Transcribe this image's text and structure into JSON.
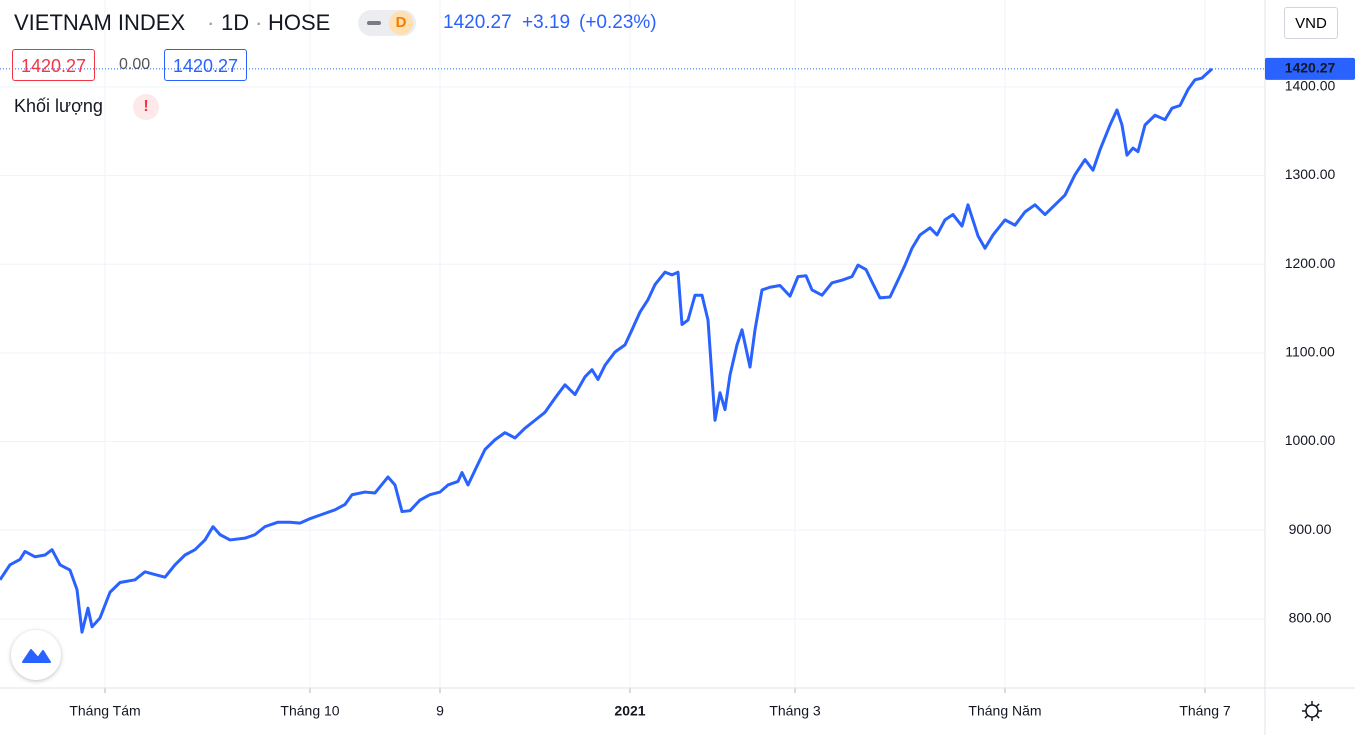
{
  "header": {
    "symbol": "VIETNAM INDEX",
    "interval": "1D",
    "exchange": "HOSE",
    "mode": "D",
    "last": "1420.27",
    "change": "+3.19",
    "change_pct": "(+0.23%)",
    "currency": "VND",
    "open_box": "1420.27",
    "diff": "0.00",
    "close_box": "1420.27",
    "volume": "Khối lượng",
    "alert": "!"
  },
  "chart_data": {
    "type": "line",
    "color": "#2962ff",
    "grid": true,
    "x": [
      0,
      2,
      4,
      5,
      7,
      9,
      10.4,
      12,
      14,
      15.4,
      16.4,
      17.6,
      18.4,
      20,
      22,
      24,
      27,
      29,
      31,
      33,
      35,
      37,
      39,
      41,
      42.6,
      44,
      46,
      49,
      51,
      53,
      55.6,
      58,
      60,
      62,
      64,
      67,
      69,
      70.4,
      73,
      75,
      77.6,
      79,
      80.4,
      82,
      84,
      86,
      88,
      89.6,
      91.6,
      92.4,
      93.6,
      95.2,
      97,
      99,
      101,
      103,
      105,
      107,
      109,
      111,
      113,
      115,
      117,
      118.4,
      119.6,
      121,
      123,
      125,
      126.4,
      128,
      129.6,
      131,
      133,
      134.4,
      135.6,
      136.4,
      137.6,
      139,
      140.4,
      141.6,
      143,
      144,
      145,
      146,
      147.4,
      148.4,
      150,
      151,
      152.4,
      154,
      156,
      158,
      159.6,
      161.2,
      162.4,
      164.4,
      166.4,
      168.4,
      170.4,
      171.6,
      173.2,
      174.4,
      176,
      178,
      179.6,
      181,
      182.4,
      184,
      186,
      187.4,
      189,
      190.6,
      192.4,
      193.6,
      195.6,
      197,
      198.6,
      201,
      203,
      205,
      207,
      209,
      211,
      213,
      215,
      217,
      218.6,
      220,
      222,
      223.4,
      224.4,
      225.4,
      226.6,
      227.6,
      229,
      231,
      233,
      234.4,
      236,
      237.6,
      239,
      240.4,
      242.4
    ],
    "values": [
      844,
      861,
      867,
      876,
      870,
      872,
      878,
      861,
      855,
      833,
      785,
      812,
      791,
      801,
      830,
      841,
      844,
      853,
      850,
      847,
      861,
      872,
      878,
      889,
      904,
      895,
      889,
      891,
      895,
      904,
      909,
      909,
      908,
      913,
      917,
      923,
      929,
      940,
      943,
      942,
      960,
      951,
      921,
      922,
      934,
      940,
      943,
      951,
      955,
      965,
      951,
      970,
      991,
      1002,
      1010,
      1004,
      1015,
      1024,
      1033,
      1049,
      1064,
      1053,
      1073,
      1081,
      1070,
      1086,
      1101,
      1109,
      1126,
      1146,
      1160,
      1177,
      1191,
      1188,
      1191,
      1132,
      1137,
      1165,
      1165,
      1137,
      1024,
      1055,
      1036,
      1075,
      1109,
      1126,
      1084,
      1126,
      1171,
      1174,
      1176,
      1164,
      1186,
      1187,
      1171,
      1165,
      1179,
      1182,
      1186,
      1199,
      1194,
      1180,
      1162,
      1163,
      1182,
      1199,
      1218,
      1233,
      1241,
      1233,
      1250,
      1256,
      1243,
      1267,
      1232,
      1218,
      1233,
      1250,
      1244,
      1259,
      1267,
      1256,
      1267,
      1278,
      1301,
      1318,
      1306,
      1329,
      1357,
      1374,
      1357,
      1323,
      1331,
      1327,
      1357,
      1368,
      1363,
      1376,
      1379,
      1397,
      1408,
      1410,
      1420.27
    ],
    "value_labels": {
      "142": "1420.27"
    },
    "xlim": [
      0,
      253
    ],
    "ylim": [
      722,
      1498
    ],
    "xticks": [
      {
        "value": 21,
        "label": "Tháng Tám"
      },
      {
        "value": 62,
        "label": "Tháng 10"
      },
      {
        "value": 88,
        "label": "9"
      },
      {
        "value": 126,
        "label": "2021"
      },
      {
        "value": 159,
        "label": "Tháng 3"
      },
      {
        "value": 201,
        "label": "Tháng Năm"
      },
      {
        "value": 241,
        "label": "Tháng 7"
      }
    ],
    "yticks": [
      {
        "value": 800,
        "label": "800.00"
      },
      {
        "value": 900,
        "label": "900.00"
      },
      {
        "value": 1000,
        "label": "1000.00"
      },
      {
        "value": 1100,
        "label": "1100.00"
      },
      {
        "value": 1200,
        "label": "1200.00"
      },
      {
        "value": 1300,
        "label": "1300.00"
      },
      {
        "value": 1400,
        "label": "1400.00"
      }
    ]
  }
}
